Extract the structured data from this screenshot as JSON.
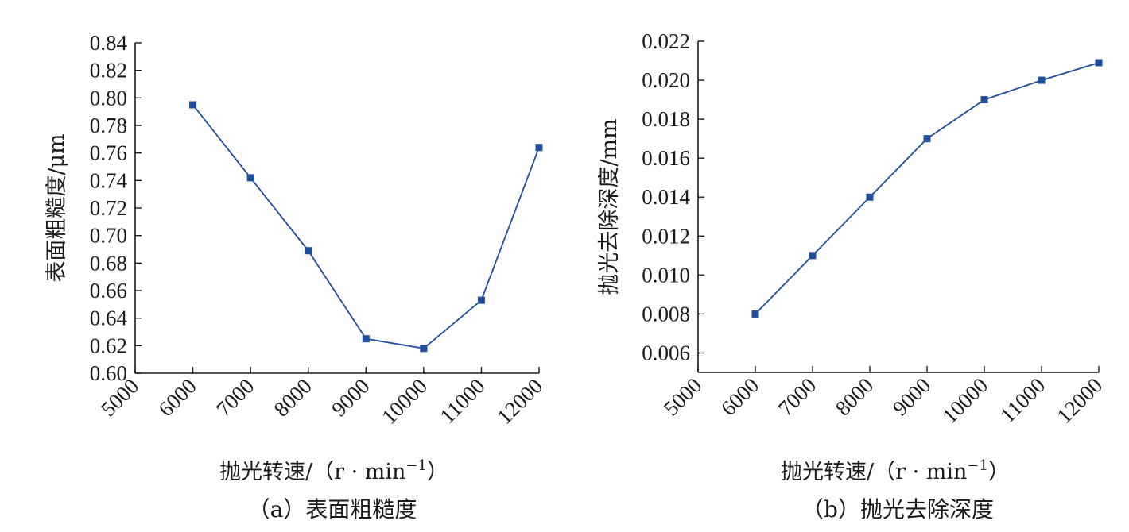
{
  "chart_data": [
    {
      "type": "line",
      "caption": "（a）表面粗糙度",
      "xlabel": "抛光转速/（r · min",
      "xlabel_sup": "−1",
      "xlabel_tail": "）",
      "ylabel": "表面粗糙度/μm",
      "xlim": [
        5000,
        12000
      ],
      "x_ticks": [
        "5000",
        "6000",
        "7000",
        "8000",
        "9000",
        "10000",
        "11000",
        "12000"
      ],
      "ylim": [
        0.6,
        0.84
      ],
      "y_ticks": [
        "0.60",
        "0.62",
        "0.64",
        "0.66",
        "0.68",
        "0.70",
        "0.72",
        "0.74",
        "0.76",
        "0.78",
        "0.80",
        "0.82",
        "0.84"
      ],
      "line_color": "#1f4e9c",
      "marker_color": "#1f4e9c",
      "x": [
        6000,
        7000,
        8000,
        9000,
        10000,
        11000,
        12000
      ],
      "y": [
        0.795,
        0.742,
        0.689,
        0.625,
        0.618,
        0.653,
        0.764
      ]
    },
    {
      "type": "line",
      "caption": "（b）抛光去除深度",
      "xlabel": "抛光转速/（r · min",
      "xlabel_sup": "−1",
      "xlabel_tail": "）",
      "ylabel": "抛光去除深度/mm",
      "xlim": [
        5000,
        12000
      ],
      "x_ticks": [
        "5000",
        "6000",
        "7000",
        "8000",
        "9000",
        "10000",
        "11000",
        "12000"
      ],
      "ylim": [
        0.005,
        0.022
      ],
      "y_ticks": [
        "0.006",
        "0.008",
        "0.010",
        "0.012",
        "0.014",
        "0.016",
        "0.018",
        "0.020",
        "0.022"
      ],
      "line_color": "#1f4e9c",
      "marker_color": "#1f4e9c",
      "x": [
        6000,
        7000,
        8000,
        9000,
        10000,
        11000,
        12000
      ],
      "y": [
        0.008,
        0.011,
        0.014,
        0.017,
        0.019,
        0.02,
        0.0209
      ]
    }
  ]
}
